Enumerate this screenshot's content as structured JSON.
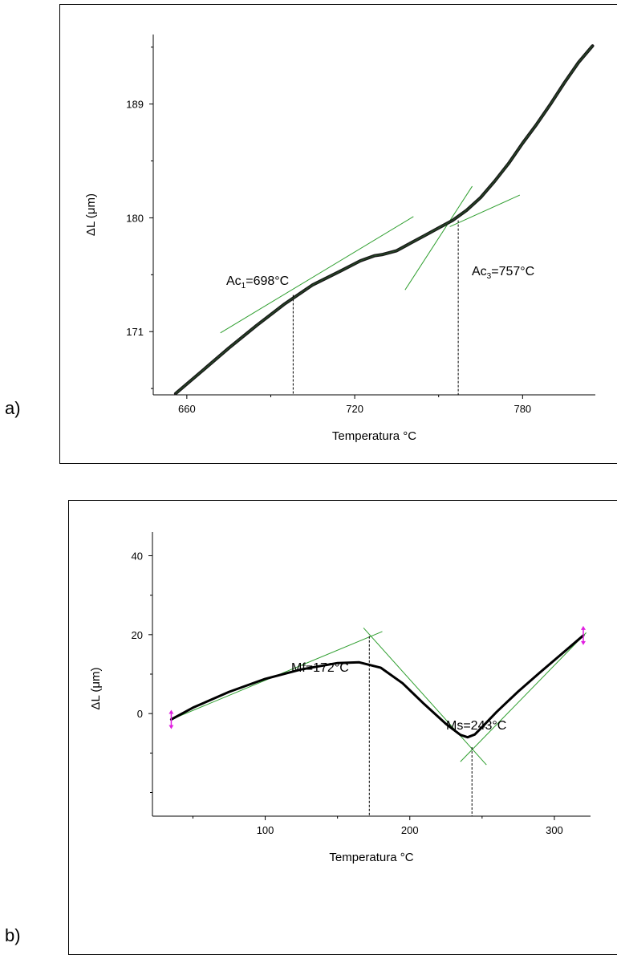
{
  "panels": {
    "a_label": "a)",
    "b_label": "b)"
  },
  "chart_data": [
    {
      "type": "line",
      "panel": "a",
      "xlabel": "Temperatura °C",
      "ylabel": "ΔL (μm)",
      "xlim": [
        648,
        806
      ],
      "ylim": [
        166,
        194.5
      ],
      "xticks": [
        660,
        720,
        780
      ],
      "yticks": [
        171,
        180,
        189
      ],
      "grid": false,
      "series": [
        {
          "role": "curve",
          "color": "#1a1a1a",
          "x": [
            656,
            665,
            675,
            685,
            695,
            705,
            715,
            722,
            727,
            730,
            735,
            740,
            745,
            750,
            755,
            760,
            765,
            770,
            775,
            780,
            785,
            790,
            795,
            800,
            805
          ],
          "y": [
            166.1,
            167.8,
            169.7,
            171.5,
            173.2,
            174.7,
            175.8,
            176.6,
            177.0,
            177.1,
            177.4,
            178.0,
            178.6,
            179.2,
            179.8,
            180.6,
            181.6,
            182.9,
            184.3,
            185.9,
            187.4,
            189.0,
            190.7,
            192.3,
            193.6
          ]
        }
      ],
      "tangents": [
        {
          "color": "#2e9e2e",
          "x": [
            672,
            741
          ],
          "y": [
            170.9,
            180.1
          ]
        },
        {
          "color": "#2e9e2e",
          "x": [
            738,
            762
          ],
          "y": [
            174.3,
            182.5
          ]
        },
        {
          "color": "#2e9e2e",
          "x": [
            754,
            779
          ],
          "y": [
            179.3,
            181.8
          ]
        }
      ],
      "markers": [
        {
          "x": 698,
          "y_top": 173.9,
          "label": "Ac",
          "sub": "1",
          "tail": "=698°C"
        },
        {
          "x": 757,
          "y_top": 179.8,
          "label": "Ac",
          "sub": "3",
          "tail": "=757°C"
        }
      ]
    },
    {
      "type": "line",
      "panel": "b",
      "xlabel": "Temperatura °C",
      "ylabel": "ΔL (μm)",
      "xlim": [
        22,
        325
      ],
      "ylim": [
        -26,
        46
      ],
      "xticks": [
        100,
        200,
        300
      ],
      "yticks": [
        0,
        20,
        40
      ],
      "grid": false,
      "series": [
        {
          "role": "curve",
          "color": "#000000",
          "x": [
            35,
            50,
            75,
            100,
            125,
            150,
            165,
            180,
            195,
            210,
            225,
            235,
            240,
            245,
            250,
            260,
            275,
            290,
            305,
            320
          ],
          "y": [
            -1.5,
            1.5,
            5.5,
            8.8,
            11.2,
            12.8,
            13.0,
            11.6,
            7.7,
            2.4,
            -2.6,
            -5.4,
            -6.0,
            -5.3,
            -3.4,
            0.4,
            5.6,
            10.4,
            15.1,
            19.8
          ]
        }
      ],
      "tangents": [
        {
          "color": "#2e9e2e",
          "x": [
            35,
            181
          ],
          "y": [
            -1.5,
            20.8
          ]
        },
        {
          "color": "#2e9e2e",
          "x": [
            168,
            253
          ],
          "y": [
            21.7,
            -13.0
          ]
        },
        {
          "color": "#2e9e2e",
          "x": [
            235,
            322
          ],
          "y": [
            -12.2,
            20.5
          ]
        }
      ],
      "markers": [
        {
          "x": 172,
          "y_top": 19.6,
          "label": "Mf=172°C"
        },
        {
          "x": 243,
          "y_top": -8.5,
          "label": "Ms=243°C"
        }
      ],
      "end_marker_color": "#e020e0",
      "end_markers": [
        {
          "x": 35,
          "y": -1.5
        },
        {
          "x": 320,
          "y": 19.8
        }
      ]
    }
  ]
}
